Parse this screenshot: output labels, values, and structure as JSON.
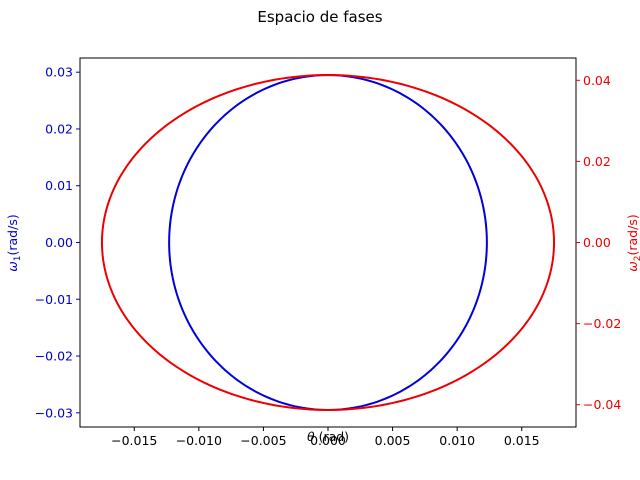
{
  "chart_data": {
    "type": "line",
    "title": "Espacio de fases",
    "xlabel": {
      "symbol": "θ",
      "unit": " (rad)"
    },
    "ylabel_left": {
      "symbol": "ω",
      "subscript": "1",
      "unit": "(rad/s)"
    },
    "ylabel_right": {
      "symbol": "ω",
      "subscript": "2",
      "unit": "(rad/s)"
    },
    "xlim": [
      -0.0192,
      0.0192
    ],
    "ylim_left": [
      -0.0325,
      0.0325
    ],
    "ylim_right": [
      -0.0455,
      0.0455
    ],
    "x_ticks": [
      "−0.015",
      "−0.010",
      "−0.005",
      "0.000",
      "0.005",
      "0.010",
      "0.015"
    ],
    "x_tick_values": [
      -0.015,
      -0.01,
      -0.005,
      0.0,
      0.005,
      0.01,
      0.015
    ],
    "y_left_ticks": [
      "−0.03",
      "−0.02",
      "−0.01",
      "0.00",
      "0.01",
      "0.02",
      "0.03"
    ],
    "y_left_tick_values": [
      -0.03,
      -0.02,
      -0.01,
      0.0,
      0.01,
      0.02,
      0.03
    ],
    "y_right_ticks": [
      "−0.04",
      "−0.02",
      "0.00",
      "0.02",
      "0.04"
    ],
    "y_right_tick_values": [
      -0.04,
      -0.02,
      0.0,
      0.02,
      0.04
    ],
    "grid": false,
    "legend": "none",
    "series": [
      {
        "axis": "left",
        "color": "#0000dd",
        "shape": "ellipse",
        "center": [
          0.0,
          0.0
        ],
        "x_amplitude": 0.0123,
        "y_amplitude": 0.0295
      },
      {
        "axis": "right",
        "color": "#ee0000",
        "shape": "ellipse",
        "center": [
          0.0,
          0.0
        ],
        "x_amplitude": 0.0175,
        "y_amplitude": 0.0413
      }
    ],
    "colors": {
      "left_axis": "#0000cc",
      "right_axis": "#ee0000",
      "frame": "#000000"
    }
  }
}
